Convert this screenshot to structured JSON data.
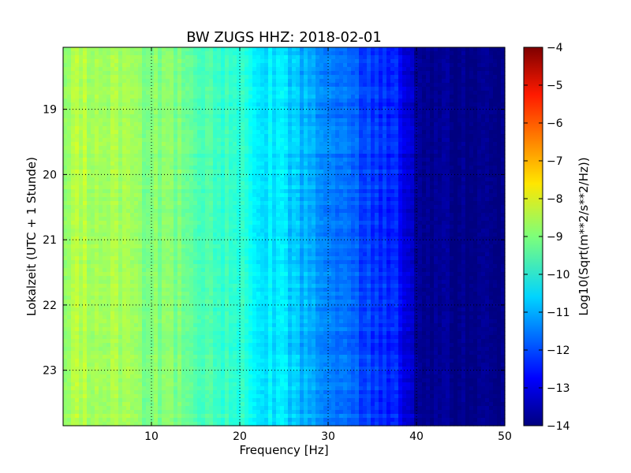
{
  "chart_data": {
    "type": "heatmap",
    "title": "BW ZUGS HHZ: 2018-02-01",
    "xlabel": "Frequency [Hz]",
    "ylabel": "Lokalzeit (UTC + 1 Stunde)",
    "xlim": [
      0,
      50
    ],
    "ylim": [
      18.05,
      23.85
    ],
    "y_inverted": true,
    "xticks": [
      10,
      20,
      30,
      40,
      50
    ],
    "xtick_labels": [
      "10",
      "20",
      "30",
      "40",
      "50"
    ],
    "yticks": [
      19,
      20,
      21,
      22,
      23
    ],
    "ytick_labels": [
      "19",
      "20",
      "21",
      "22",
      "23"
    ],
    "grid": true,
    "colormap": "jet",
    "colorbar": {
      "label": "Log10(Sqrt(m**2/s**2/Hz))",
      "range": [
        -14,
        -4
      ],
      "ticks": [
        -4,
        -5,
        -6,
        -7,
        -8,
        -9,
        -10,
        -11,
        -12,
        -13,
        -14
      ],
      "tick_labels": [
        "−4",
        "−5",
        "−6",
        "−7",
        "−8",
        "−9",
        "−10",
        "−11",
        "−12",
        "−13",
        "−14"
      ]
    },
    "spectrum_profile": {
      "frequency_hz": [
        0,
        1,
        3,
        5,
        8,
        10,
        12,
        15,
        18,
        20,
        22,
        24,
        24.5,
        25,
        26,
        28,
        30,
        32,
        34,
        36,
        37,
        37.5,
        38,
        38.5,
        39,
        40,
        41,
        45,
        50
      ],
      "log10_amplitude": [
        -8.9,
        -8.4,
        -8.55,
        -8.65,
        -8.8,
        -9.0,
        -8.9,
        -9.4,
        -9.7,
        -9.85,
        -10.3,
        -10.5,
        -10.05,
        -10.55,
        -10.8,
        -11.15,
        -11.45,
        -11.8,
        -12.05,
        -12.3,
        -12.4,
        -11.95,
        -12.6,
        -12.9,
        -13.25,
        -13.6,
        -13.85,
        -13.9,
        -13.9
      ]
    }
  }
}
